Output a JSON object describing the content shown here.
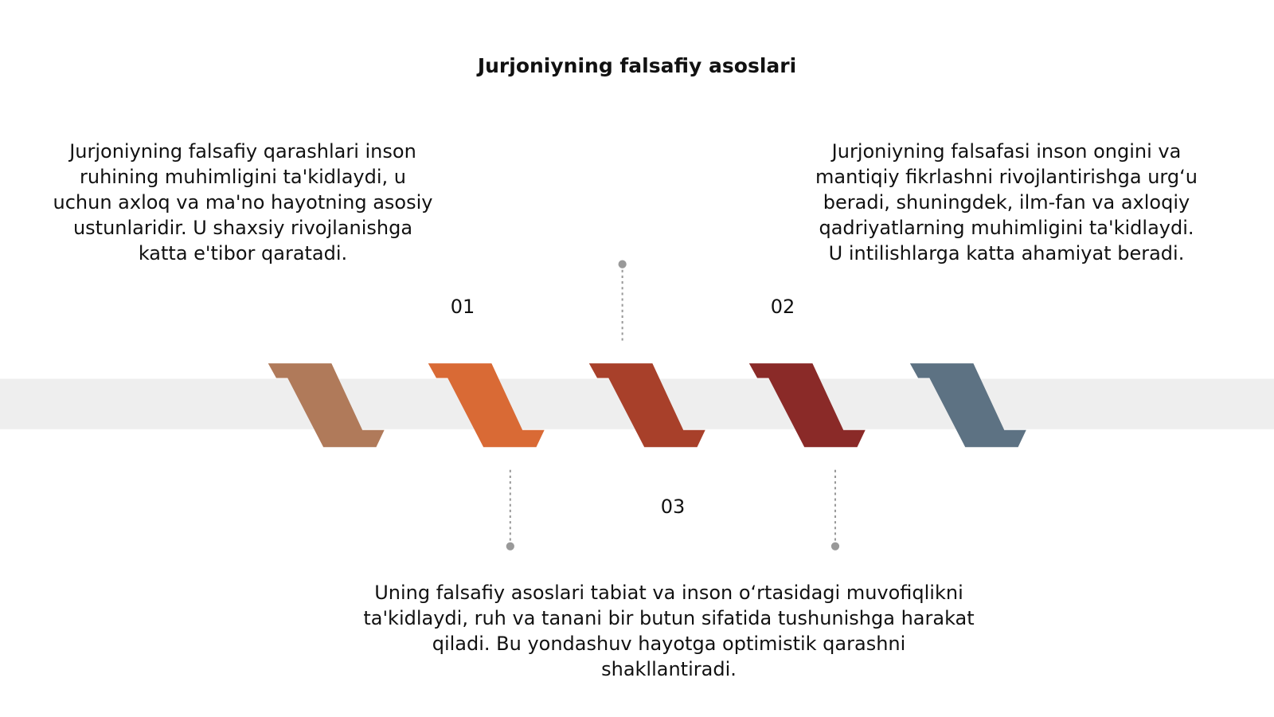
{
  "title": "Jurjoniyning falsafiy asoslari",
  "items": [
    {
      "number": "01",
      "text": "Jurjoniyning falsafiy qarashlari inson ruhining muhimligini ta'kidlaydi, u uchun axloq va ma'no hayotning asosiy ustunlaridir. U shaxsiy rivojlanishga katta e'tibor qaratadi."
    },
    {
      "number": "02",
      "text": "Jurjoniyning falsafasi inson ongini va mantiqiy fikrlashni rivojlantirishga urg‘u beradi, shuningdek, ilm-fan va axloqiy qadriyatlarning muhimligini ta'kidlaydi. U intilishlarga katta ahamiyat beradi."
    },
    {
      "number": "03",
      "text": "Uning falsafiy asoslari tabiat va inson o‘rtasidagi muvofiqlikni ta'kidlaydi, ruh va tanani bir butun sifatida tushunishga harakat qiladi. Bu yondashuv hayotga optimistik qarashni shakllantiradi."
    }
  ]
}
